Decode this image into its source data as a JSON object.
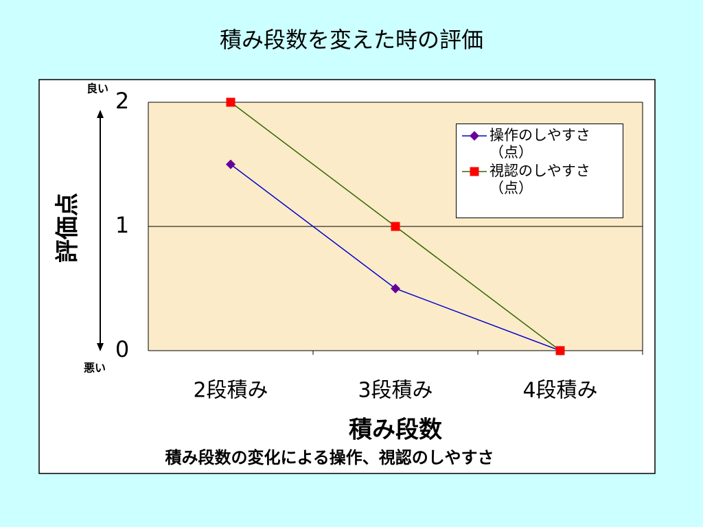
{
  "chart_data": {
    "type": "line",
    "title": "積み段数を変えた時の評価",
    "x_label": "積み段数",
    "y_label": "評価点",
    "annotations": {
      "top": "良い",
      "bottom": "悪い"
    },
    "caption": "積み段数の変化による操作、視認のしやすさ",
    "categories": [
      "2段積み",
      "3段積み",
      "4段積み"
    ],
    "series": [
      {
        "name": "操作のしやすさ（点）",
        "color": "#0000cc",
        "marker": "diamond",
        "marker_color": "#660099",
        "values": [
          1.5,
          0.5,
          0
        ]
      },
      {
        "name": "視認のしやすさ（点）",
        "color": "#336600",
        "marker": "square",
        "marker_color": "#ff0000",
        "values": [
          2,
          1,
          0
        ]
      }
    ],
    "ylim": [
      0,
      2
    ],
    "yticks": [
      0,
      1,
      2
    ],
    "grid": true,
    "legend": "upper right"
  }
}
